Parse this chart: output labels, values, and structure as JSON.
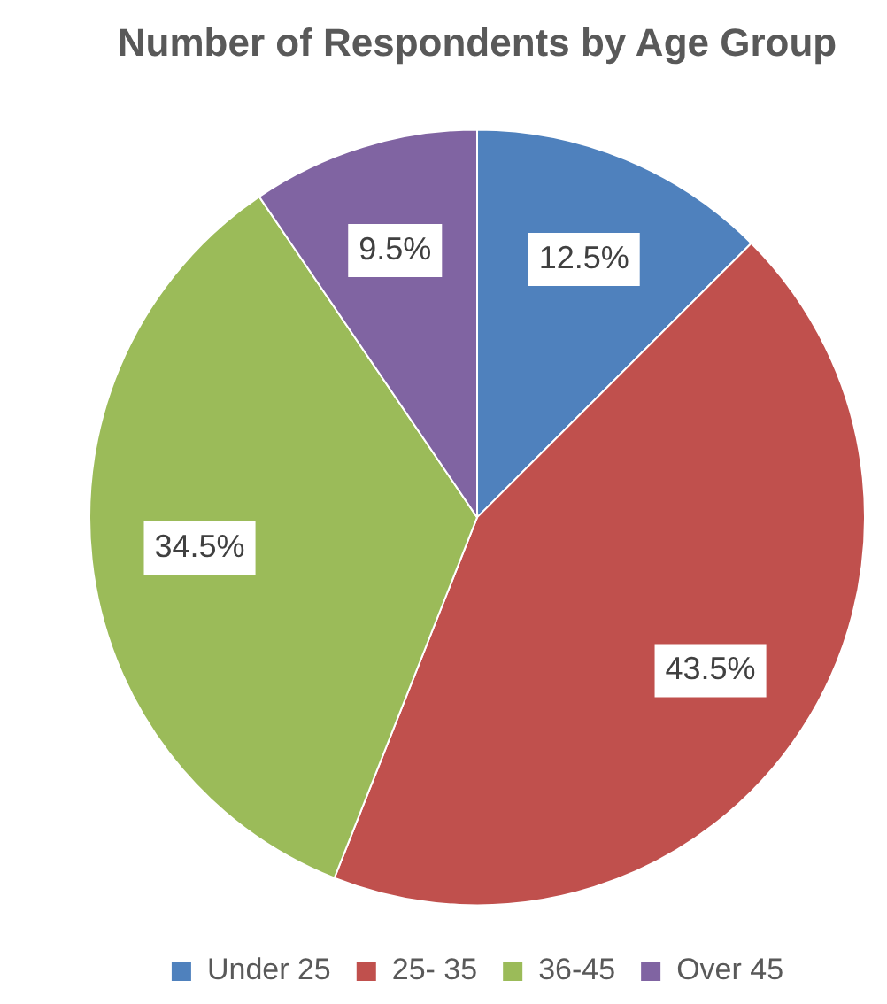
{
  "chart_data": {
    "type": "pie",
    "title": "Number of Respondents by Age Group",
    "categories": [
      "Under 25",
      "25- 35",
      "36-45",
      "Over 45"
    ],
    "values": [
      12.5,
      43.5,
      34.5,
      9.5
    ],
    "value_labels": [
      "12.5%",
      "43.5%",
      "34.5%",
      "9.5%"
    ],
    "colors": [
      "#4f81bd",
      "#c0504d",
      "#9bbb59",
      "#8064a2"
    ],
    "legend": "bottom"
  }
}
